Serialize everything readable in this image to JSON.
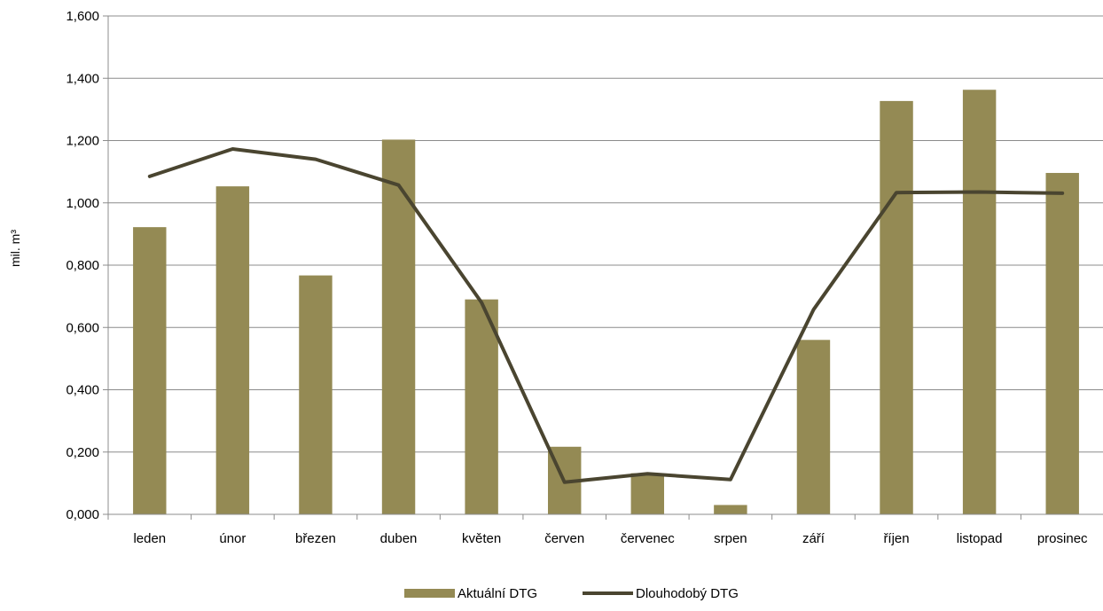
{
  "chart_data": {
    "type": "bar",
    "categories": [
      "leden",
      "únor",
      "březen",
      "duben",
      "květen",
      "červen",
      "červenec",
      "srpen",
      "září",
      "říjen",
      "listopad",
      "prosinec"
    ],
    "series": [
      {
        "name": "Aktuální DTG",
        "kind": "bar",
        "color": "#948a54",
        "values": [
          0.922,
          1.053,
          0.767,
          1.203,
          0.69,
          0.217,
          0.132,
          0.03,
          0.56,
          1.327,
          1.363,
          1.096
        ]
      },
      {
        "name": "Dlouhodobý DTG",
        "kind": "line",
        "color": "#4a4530",
        "values": [
          1.085,
          1.173,
          1.14,
          1.057,
          0.68,
          0.103,
          0.13,
          0.112,
          0.657,
          1.033,
          1.035,
          1.031
        ]
      }
    ],
    "ylabel": "mil. m³",
    "ylim": [
      0,
      1.6
    ],
    "yticks": [
      "0,000",
      "0,200",
      "0,400",
      "0,600",
      "0,800",
      "1,000",
      "1,200",
      "1,400",
      "1,600"
    ],
    "grid": true,
    "legend_position": "bottom"
  }
}
